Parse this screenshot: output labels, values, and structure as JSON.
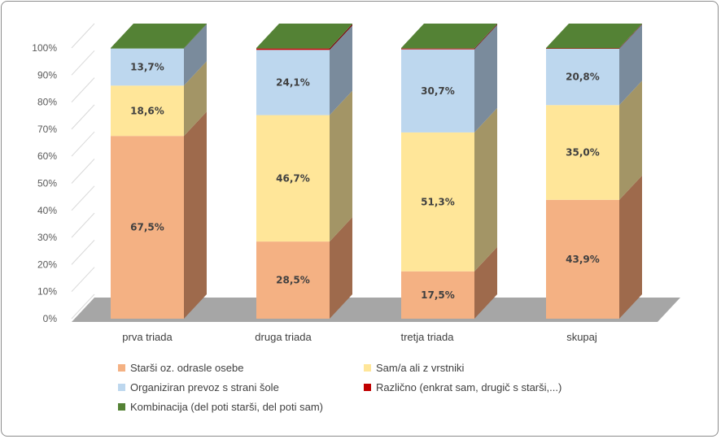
{
  "chart_data": {
    "type": "bar",
    "stacked": true,
    "percent": true,
    "three_d": true,
    "categories": [
      "prva triada",
      "druga triada",
      "tretja triada",
      "skupaj"
    ],
    "series": [
      {
        "name": "Starši oz. odrasle osebe",
        "color": "#f4b183",
        "side": "#9e6a4c",
        "values": [
          67.5,
          28.5,
          17.5,
          43.9
        ],
        "labels": [
          "67,5%",
          "28,5%",
          "17,5%",
          "43,9%"
        ]
      },
      {
        "name": "Sam/a ali z vrstniki",
        "color": "#ffe699",
        "side": "#a39566",
        "values": [
          18.6,
          46.7,
          51.3,
          35.0
        ],
        "labels": [
          "18,6%",
          "46,7%",
          "51,3%",
          "35,0%"
        ]
      },
      {
        "name": "Organiziran prevoz s strani šole",
        "color": "#bdd7ee",
        "side": "#7a8b9c",
        "values": [
          13.7,
          24.1,
          30.7,
          20.8
        ],
        "labels": [
          "13,7%",
          "24,1%",
          "30,7%",
          "20,8%"
        ]
      },
      {
        "name": "Različno (enkrat sam, drugič s starši,...)",
        "color": "#c00000",
        "side": "#7a0000",
        "values": [
          0.0,
          0.5,
          0.3,
          0.2
        ],
        "labels": [
          "",
          "",
          "",
          ""
        ]
      },
      {
        "name": "Kombinacija (del poti starši, del poti sam)",
        "color": "#548235",
        "side": "#3a5a24",
        "values": [
          0.2,
          0.2,
          0.2,
          0.1
        ],
        "labels": [
          "",
          "",
          "",
          ""
        ]
      }
    ],
    "yticks": [
      "0%",
      "10%",
      "20%",
      "30%",
      "40%",
      "50%",
      "60%",
      "70%",
      "80%",
      "90%",
      "100%"
    ],
    "ylim": [
      0,
      100
    ],
    "legend": "bottom",
    "floor_color": "#a6a6a6",
    "wall_line_color": "#d9d9d9"
  }
}
